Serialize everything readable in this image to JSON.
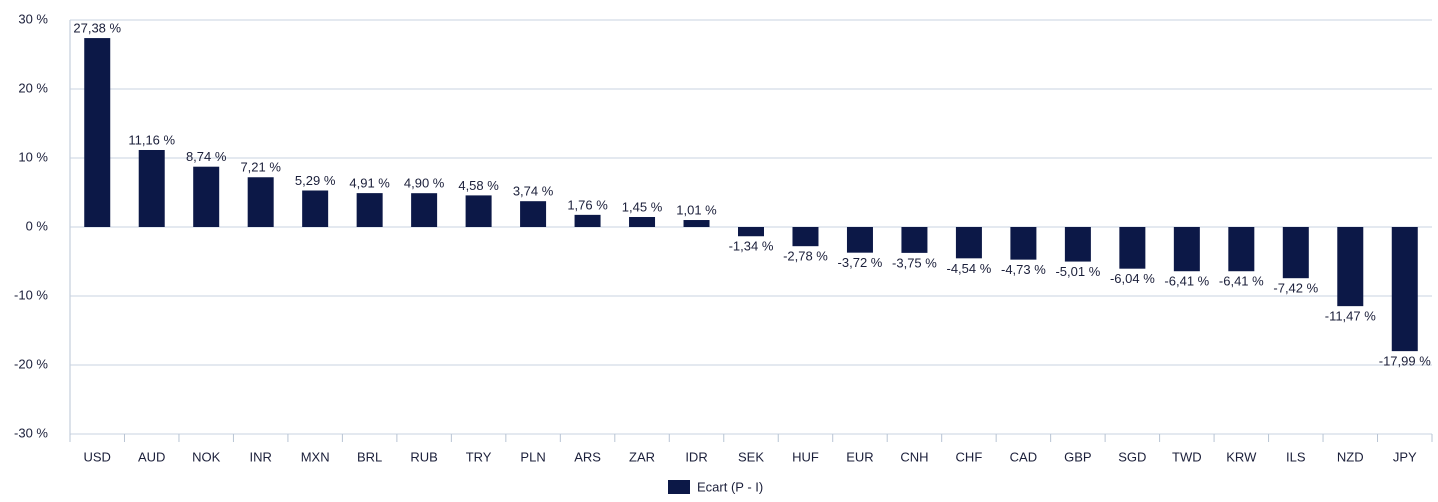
{
  "chart_data": {
    "type": "bar",
    "categories": [
      "USD",
      "AUD",
      "NOK",
      "INR",
      "MXN",
      "BRL",
      "RUB",
      "TRY",
      "PLN",
      "ARS",
      "ZAR",
      "IDR",
      "SEK",
      "HUF",
      "EUR",
      "CNH",
      "CHF",
      "CAD",
      "GBP",
      "SGD",
      "TWD",
      "KRW",
      "ILS",
      "NZD",
      "JPY"
    ],
    "series": [
      {
        "name": "Ecart (P - I)",
        "color": "#0c1847",
        "values": [
          27.38,
          11.16,
          8.74,
          7.21,
          5.29,
          4.91,
          4.9,
          4.58,
          3.74,
          1.76,
          1.45,
          1.01,
          -1.34,
          -2.78,
          -3.72,
          -3.75,
          -4.54,
          -4.73,
          -5.01,
          -6.04,
          -6.41,
          -6.41,
          -7.42,
          -11.47,
          -17.99
        ],
        "value_labels": [
          "27,38 %",
          "11,16 %",
          "8,74 %",
          "7,21 %",
          "5,29 %",
          "4,91 %",
          "4,90 %",
          "4,58 %",
          "3,74 %",
          "1,76 %",
          "1,45 %",
          "1,01 %",
          "-1,34 %",
          "-2,78 %",
          "-3,72 %",
          "-3,75 %",
          "-4,54 %",
          "-4,73 %",
          "-5,01 %",
          "-6,04 %",
          "-6,41 %",
          "-6,41 %",
          "-7,42 %",
          "-11,47 %",
          "-17,99 %"
        ]
      }
    ],
    "ylim": [
      -30,
      30
    ],
    "yticks": [
      {
        "value": -30,
        "label": "-30 %"
      },
      {
        "value": -20,
        "label": "-20 %"
      },
      {
        "value": -10,
        "label": "-10 %"
      },
      {
        "value": 0,
        "label": "0 %"
      },
      {
        "value": 10,
        "label": "10 %"
      },
      {
        "value": 20,
        "label": "20 %"
      },
      {
        "value": 30,
        "label": "30 %"
      }
    ],
    "grid": true,
    "legend": "bottom"
  }
}
